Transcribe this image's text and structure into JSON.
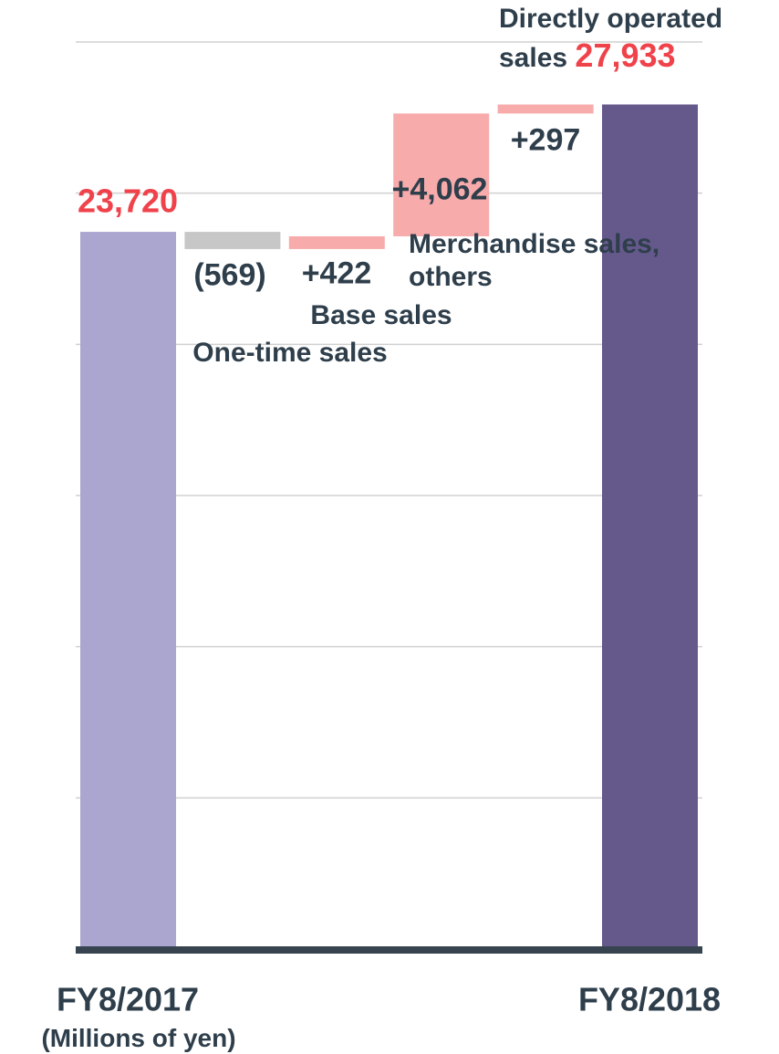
{
  "chart_data": {
    "type": "waterfall",
    "categories": [
      "FY8/2017",
      "One-time sales",
      "Base sales",
      "Merchandise sales, others",
      "Directly operated sales",
      "FY8/2018"
    ],
    "values": [
      23720,
      -569,
      422,
      4062,
      297,
      27933
    ],
    "value_labels": [
      "23,720",
      "(569)",
      "+422",
      "+4,062",
      "+297",
      "27,933"
    ],
    "colors": [
      "#aba6cf",
      "#c7c7c7",
      "#f7abab",
      "#f7abab",
      "#f7abab",
      "#65598c"
    ],
    "unit_label": "(Millions of yen)",
    "ylim": [
      0,
      30000
    ],
    "yticks": [
      0,
      5000,
      10000,
      15000,
      20000,
      25000,
      30000
    ],
    "grid": true
  }
}
